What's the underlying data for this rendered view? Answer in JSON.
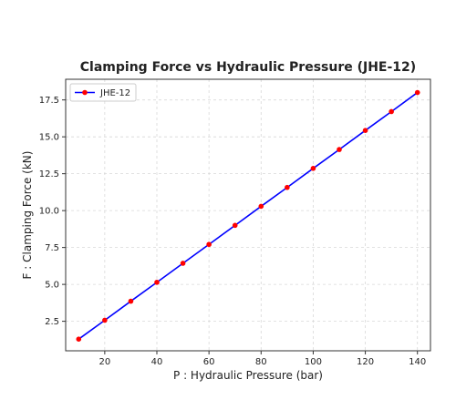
{
  "chart_data": {
    "type": "line",
    "title": "Clamping Force vs Hydraulic Pressure (JHE-12)",
    "xlabel": "P : Hydraulic Pressure (bar)",
    "ylabel": "F : Clamping Force (kN)",
    "xlim": [
      5,
      145
    ],
    "ylim": [
      0.5,
      18.9
    ],
    "xticks": [
      20,
      40,
      60,
      80,
      100,
      120,
      140
    ],
    "yticks": [
      2.5,
      5.0,
      7.5,
      10.0,
      12.5,
      15.0,
      17.5
    ],
    "xtick_labels": [
      "20",
      "40",
      "60",
      "80",
      "100",
      "120",
      "140"
    ],
    "ytick_labels": [
      "2.5",
      "5.0",
      "7.5",
      "10.0",
      "12.5",
      "15.0",
      "17.5"
    ],
    "grid": true,
    "legend_position": "top-left",
    "series": [
      {
        "name": "JHE-12",
        "line_color": "#0000ff",
        "marker_color": "#ff0000",
        "x": [
          10,
          20,
          30,
          40,
          50,
          60,
          70,
          80,
          90,
          100,
          110,
          120,
          130,
          140
        ],
        "y": [
          1.29,
          2.57,
          3.86,
          5.14,
          6.43,
          7.71,
          9.0,
          10.29,
          11.57,
          12.86,
          14.14,
          15.43,
          16.71,
          18.0
        ]
      }
    ]
  }
}
